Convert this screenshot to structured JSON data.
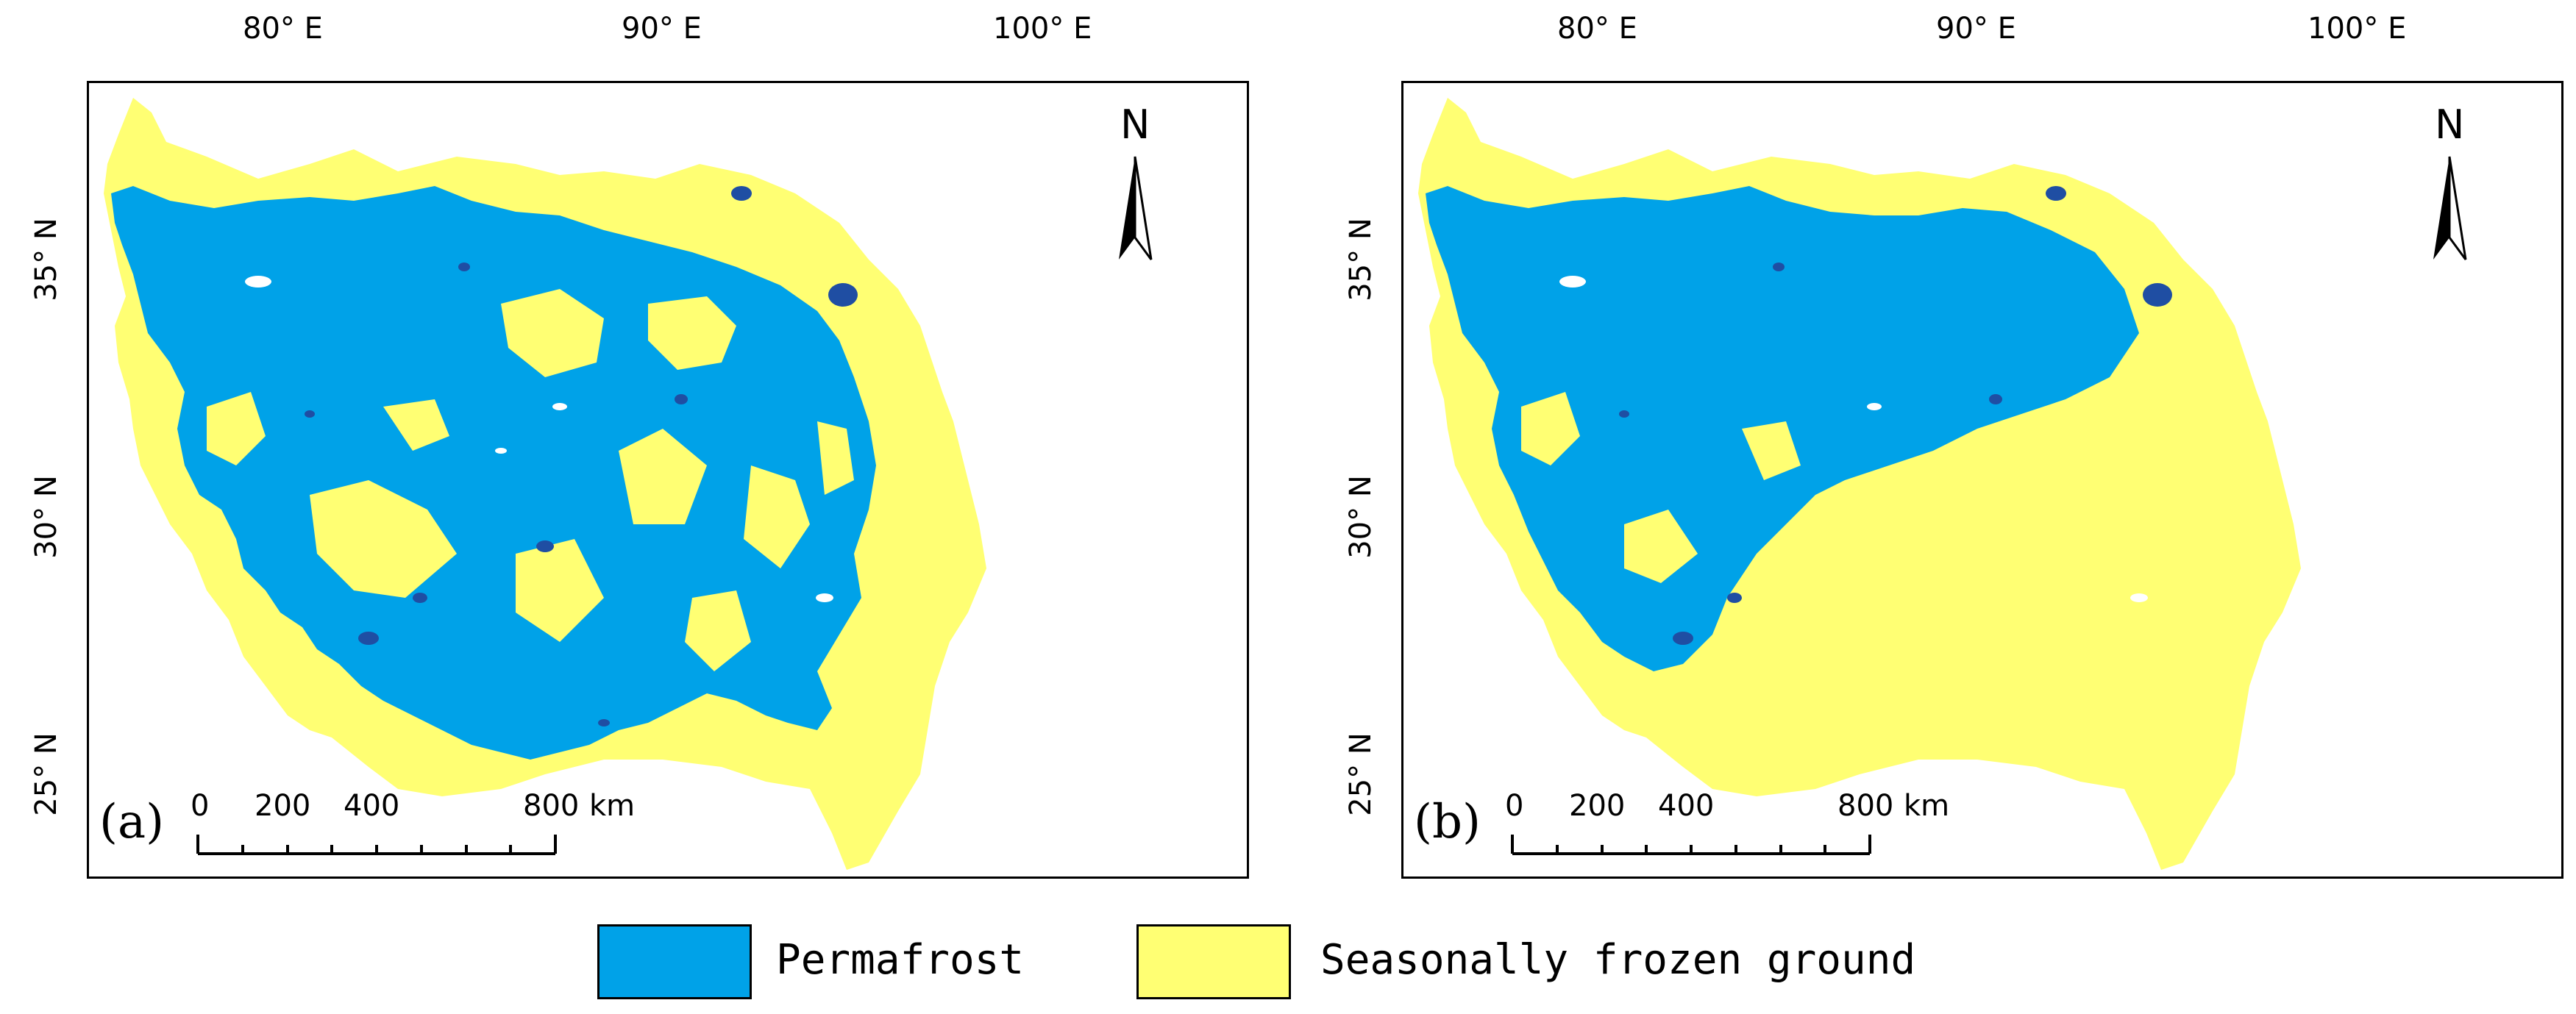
{
  "map": {
    "longitude_labels": [
      "80° E",
      "90° E",
      "100° E"
    ],
    "latitude_labels": [
      "35° N",
      "30° N",
      "25° N"
    ],
    "north_label": "N",
    "scale_labels": [
      "0",
      "200",
      "400",
      "800"
    ],
    "scale_unit": "km"
  },
  "panels": [
    {
      "letter": "(a)"
    },
    {
      "letter": "(b)"
    }
  ],
  "legend": {
    "items": [
      {
        "label": "Permafrost",
        "color": "#00a2e8"
      },
      {
        "label": "Seasonally frozen ground",
        "color": "#ffff73"
      }
    ]
  },
  "colors": {
    "permafrost": "#00a2e8",
    "seasonal": "#ffff73",
    "lake": "#1f4ea3"
  }
}
